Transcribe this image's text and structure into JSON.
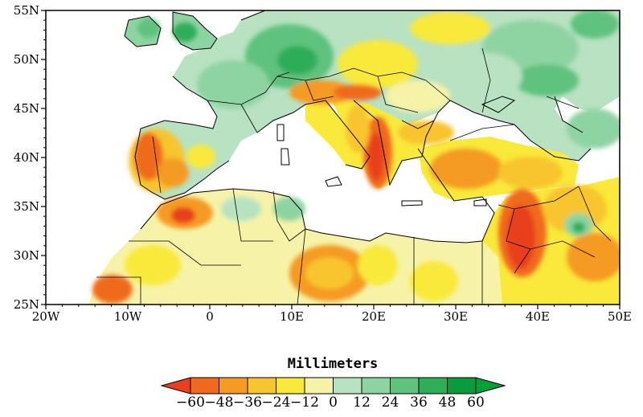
{
  "map": {
    "title": "",
    "lon_ticks": [
      "20W",
      "10W",
      "0",
      "10E",
      "20E",
      "30E",
      "40E",
      "50E"
    ],
    "lon_values": [
      -20,
      -10,
      0,
      10,
      20,
      30,
      40,
      50
    ],
    "lat_ticks": [
      "55N",
      "50N",
      "45N",
      "40N",
      "35N",
      "30N",
      "25N"
    ],
    "lat_values": [
      55,
      50,
      45,
      40,
      35,
      30,
      25
    ],
    "lon_range": [
      -20,
      50
    ],
    "lat_range": [
      25,
      55
    ],
    "ocean_color": "#ffffff",
    "border_color": "#000000"
  },
  "colorbar": {
    "title": "Millimeters",
    "labels": [
      "-60",
      "-48",
      "-36",
      "-24",
      "-12",
      "0",
      "12",
      "24",
      "36",
      "48",
      "60"
    ],
    "colors": [
      "#e8401c",
      "#f06a1e",
      "#f59a23",
      "#f8c52e",
      "#f9e93a",
      "#f6f3a8",
      "#b8e2c2",
      "#8ed4a2",
      "#5fc27e",
      "#2fad59",
      "#0a9b3c",
      "#00a03a"
    ]
  }
}
